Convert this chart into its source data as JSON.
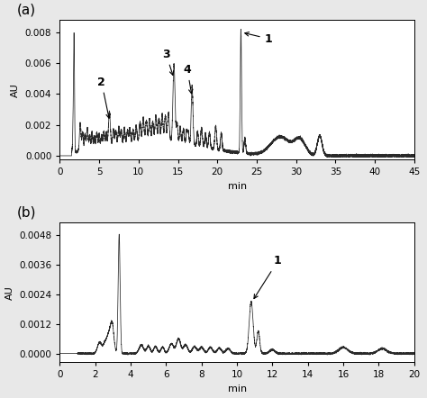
{
  "panel_a": {
    "xlim": [
      0,
      45
    ],
    "ylim": [
      -0.00025,
      0.0088
    ],
    "yticks": [
      0.0,
      0.002,
      0.004,
      0.006,
      0.008
    ],
    "xticks": [
      0,
      5,
      10,
      15,
      20,
      25,
      30,
      35,
      40,
      45
    ],
    "xlabel": "min",
    "ylabel": "AU",
    "label": "(a)"
  },
  "panel_b": {
    "xlim": [
      0,
      20
    ],
    "ylim": [
      -0.00035,
      0.0053
    ],
    "yticks": [
      0.0,
      0.0012,
      0.0024,
      0.0036,
      0.0048
    ],
    "xticks": [
      0,
      2,
      4,
      6,
      8,
      10,
      12,
      14,
      16,
      18,
      20
    ],
    "xlabel": "min",
    "ylabel": "AU",
    "label": "(b)"
  },
  "line_color": "#2a2a2a",
  "bg_color": "#e8e8e8",
  "plot_bg": "#ffffff"
}
